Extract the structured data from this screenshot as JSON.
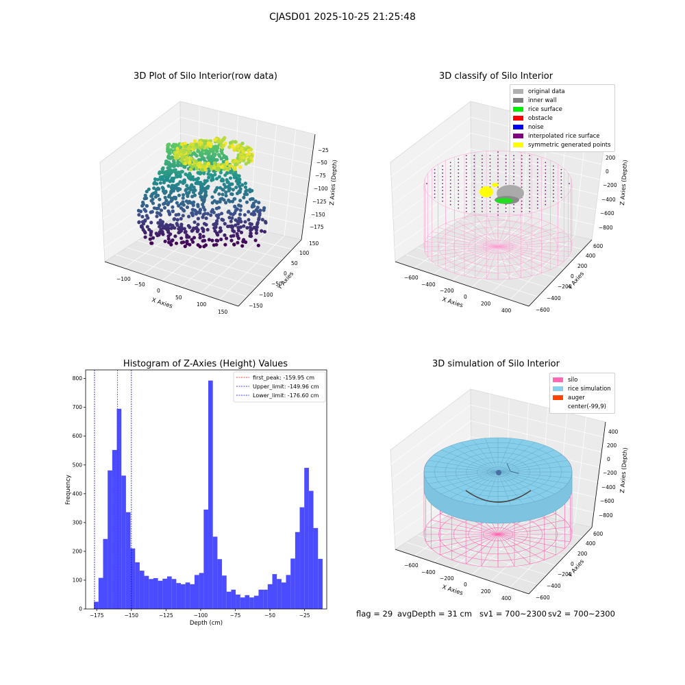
{
  "figure": {
    "suptitle": "CJASD01 2025-10-25 21:25:48",
    "status": {
      "flag": "flag = 29",
      "avg_depth": "avgDepth = 31 cm",
      "sv1": "sv1 = 700~2300",
      "sv2": "sv2 = 700~2300"
    }
  },
  "chart_data": [
    {
      "type": "scatter",
      "projection": "3d",
      "title": "3D Plot of Silo Interior(row data)",
      "xlabel": "X Axies",
      "ylabel": "Y Axies",
      "zlabel": "Z Axies (Depth)",
      "x_ticks": [
        "−100",
        "−50",
        "0",
        "50",
        "100",
        "150"
      ],
      "y_ticks": [
        "−150",
        "−100",
        "−50",
        "0",
        "50",
        "100",
        "150"
      ],
      "z_ticks": [
        "−25",
        "−50",
        "−75",
        "−100",
        "−125",
        "−150",
        "−175"
      ],
      "colormap": "viridis"
    },
    {
      "type": "scatter",
      "projection": "3d",
      "title": "3D classify of Silo Interior",
      "xlabel": "X Axies",
      "ylabel": "Y Axies",
      "zlabel": "Z Axies (Depth)",
      "x_ticks": [
        "−600",
        "−400",
        "−200",
        "0",
        "200",
        "400"
      ],
      "y_ticks": [
        "−600",
        "−400",
        "−200",
        "0",
        "200",
        "400",
        "600"
      ],
      "z_ticks": [
        "200",
        "0",
        "−200",
        "−400",
        "−600",
        "−800"
      ],
      "z_top_partial": "0",
      "legend": [
        {
          "label": "original data",
          "color": "#b0b0b0"
        },
        {
          "label": "inner wall",
          "color": "#808080"
        },
        {
          "label": "rice surface",
          "color": "#00ee00"
        },
        {
          "label": "obstacle",
          "color": "#ff0000"
        },
        {
          "label": "noise",
          "color": "#0000ee"
        },
        {
          "label": "interpolated rice surface",
          "color": "#800080"
        },
        {
          "label": "symmetric generated points",
          "color": "#ffff00"
        }
      ]
    },
    {
      "type": "bar",
      "title": "Histogram of Z-Axies (Height) Values",
      "xlabel": "Depth (cm)",
      "ylabel": "Frequency",
      "xlim": [
        -183,
        -9
      ],
      "ylim": [
        0,
        830
      ],
      "x_ticks": [
        -175,
        -150,
        -125,
        -100,
        -75,
        -50,
        -25
      ],
      "x_tick_labels": [
        "−175",
        "−150",
        "−125",
        "−100",
        "−75",
        "−50",
        "−25"
      ],
      "y_ticks": [
        0,
        100,
        200,
        300,
        400,
        500,
        600,
        700,
        800
      ],
      "bin_start": -177,
      "bin_width": 3.3,
      "values": [
        25,
        108,
        243,
        481,
        552,
        695,
        463,
        336,
        210,
        162,
        133,
        115,
        104,
        107,
        98,
        105,
        113,
        104,
        90,
        86,
        92,
        86,
        118,
        125,
        345,
        793,
        251,
        173,
        116,
        60,
        67,
        50,
        40,
        48,
        40,
        46,
        67,
        67,
        86,
        121,
        104,
        92,
        118,
        175,
        267,
        353,
        490,
        410,
        281,
        174
      ],
      "bar_color": "#4b4bff",
      "vlines": [
        {
          "x": -159.95,
          "color": "#ff0000",
          "label": "first_peak: -159.95 cm"
        },
        {
          "x": -149.96,
          "color": "#0000ff",
          "label": "Upper_limit: -149.96 cm"
        },
        {
          "x": -176.6,
          "color": "#0000ff",
          "label": "Lower_limit: -176.60 cm"
        }
      ],
      "legend_position": "top-right"
    },
    {
      "type": "scatter",
      "projection": "3d",
      "title": "3D simulation of Silo Interior",
      "xlabel": "X Axies",
      "ylabel": "Y Axies",
      "zlabel": "Z Axies (Depth)",
      "x_ticks": [
        "−600",
        "−400",
        "−200",
        "0",
        "200",
        "400"
      ],
      "y_ticks": [
        "−600",
        "−400",
        "−200",
        "0",
        "200",
        "400",
        "600"
      ],
      "z_ticks": [
        "400",
        "200",
        "0",
        "−200",
        "−400",
        "−600",
        "−800"
      ],
      "legend": [
        {
          "label": "silo",
          "color": "#ff69b4"
        },
        {
          "label": "rice simulation",
          "color": "#87ceeb"
        },
        {
          "label": "auger",
          "color": "#ff4500"
        },
        {
          "label": "center(-99,9)",
          "color": "none"
        }
      ]
    }
  ]
}
